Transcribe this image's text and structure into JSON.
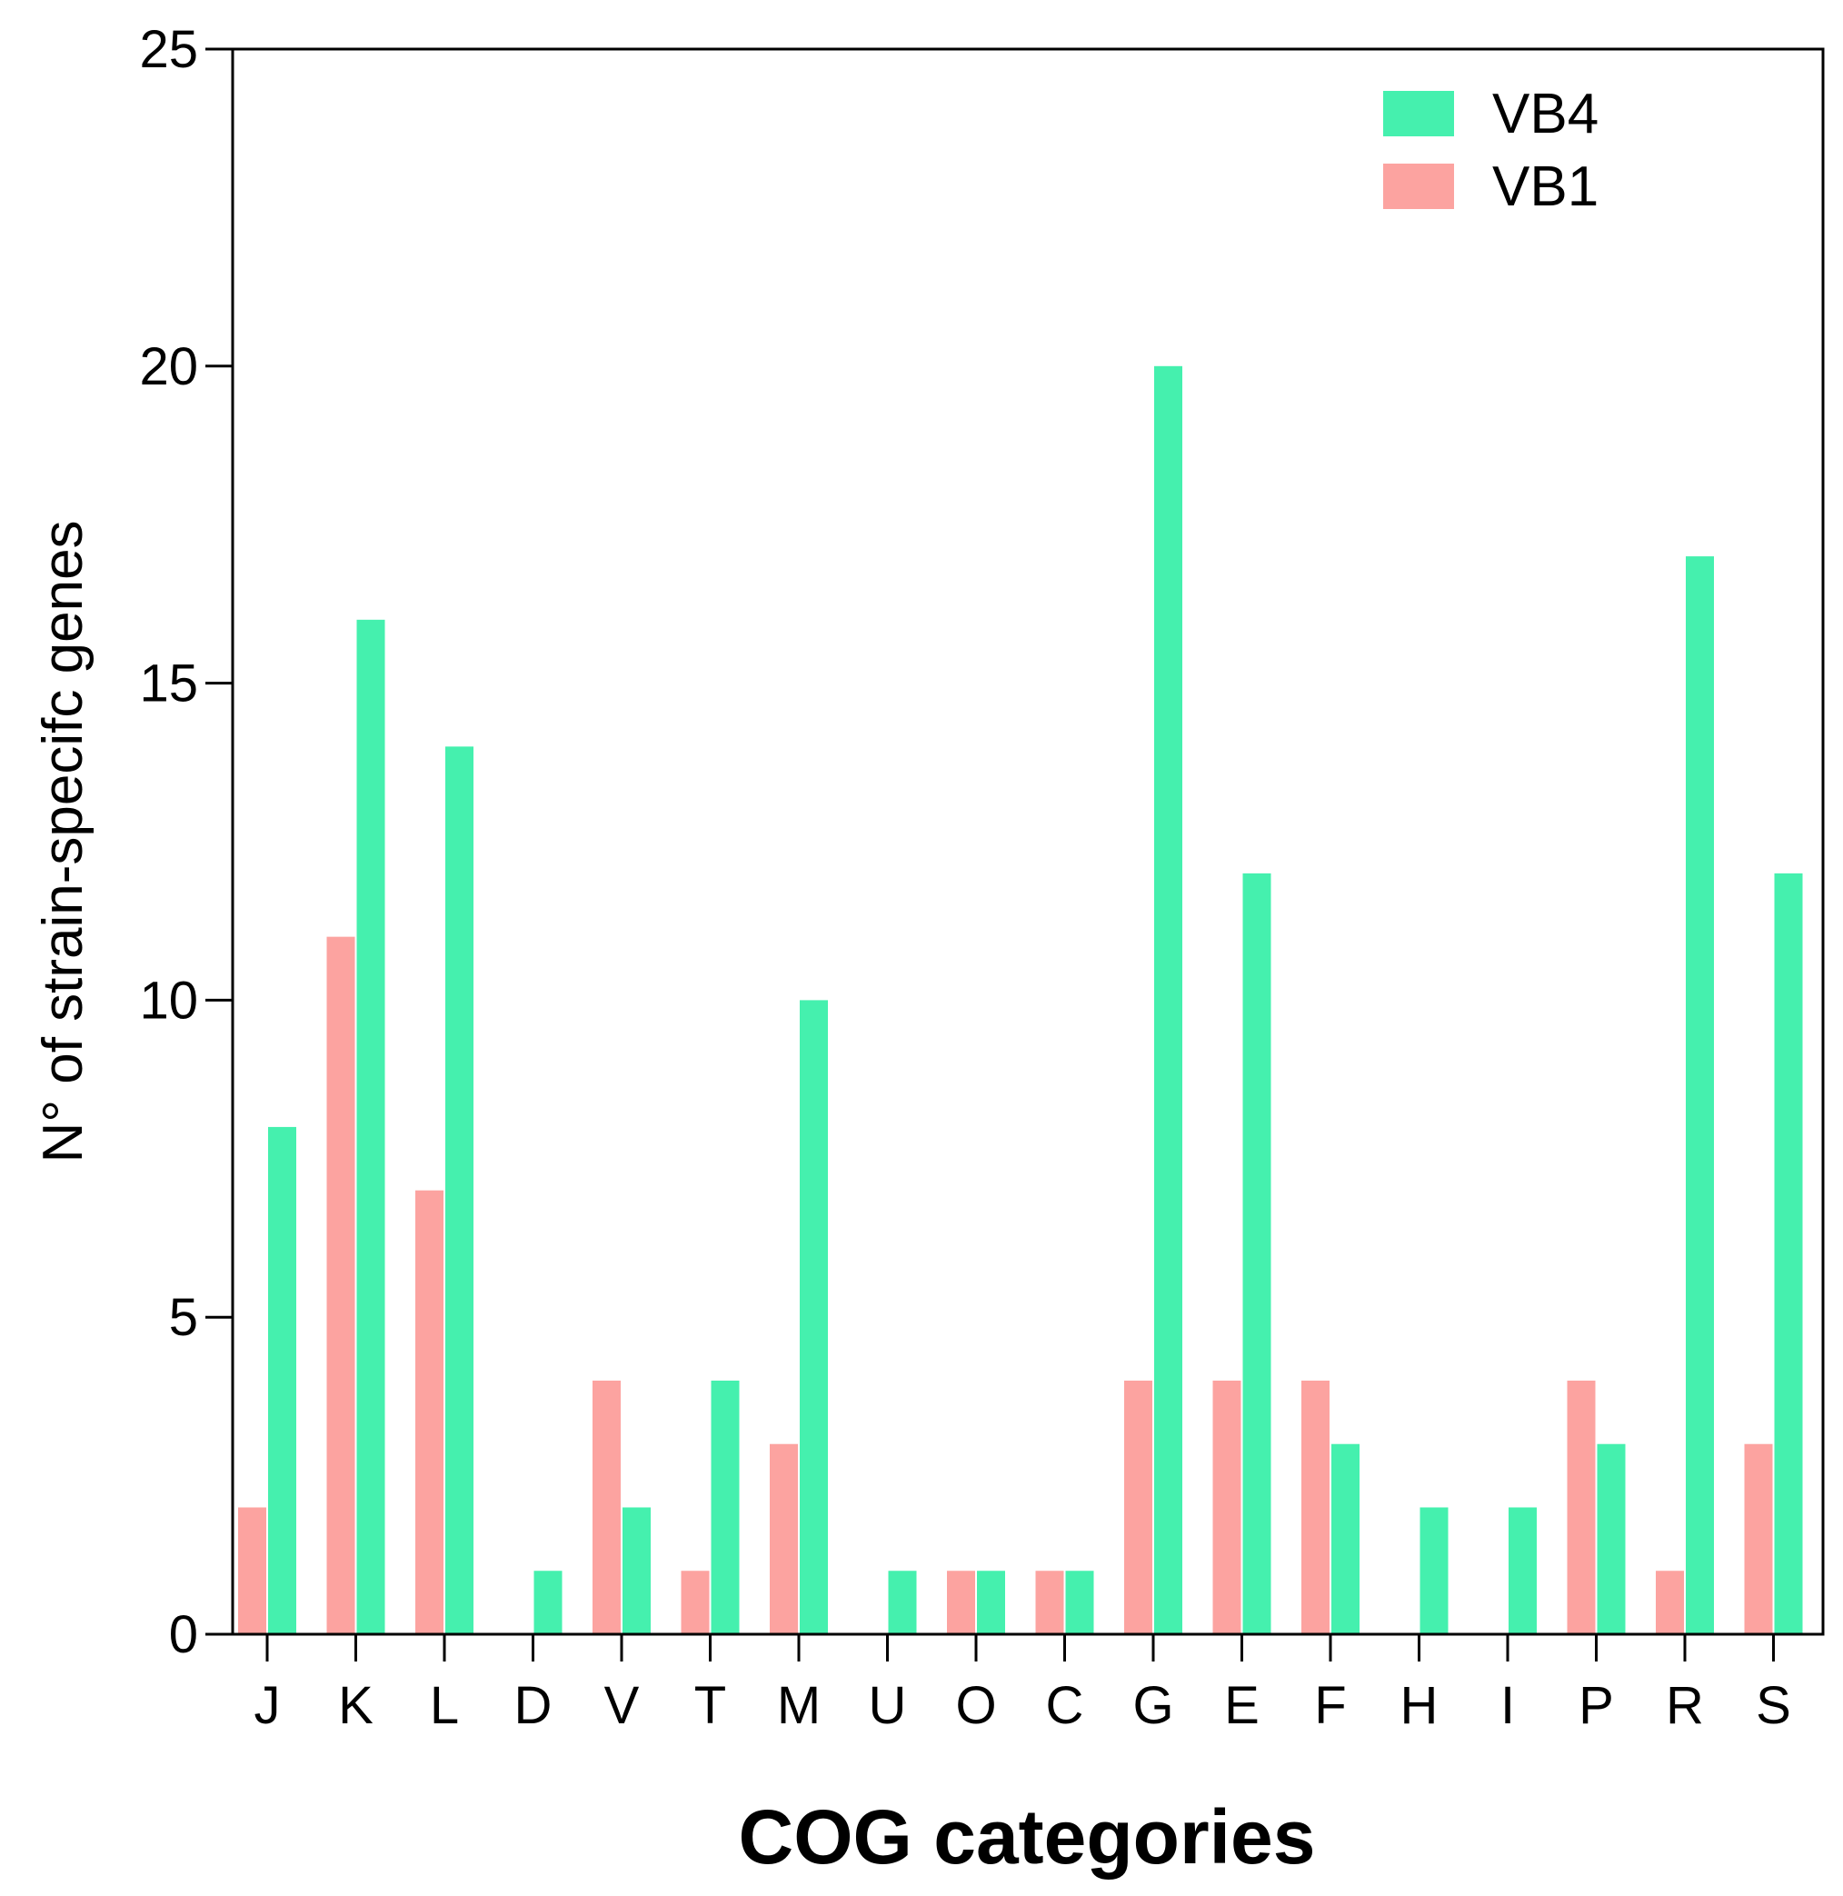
{
  "chart_data": {
    "type": "bar",
    "title": "",
    "xlabel": "COG categories",
    "ylabel": "N° of strain-specifc genes",
    "ylim": [
      0,
      25
    ],
    "yticks": [
      "0",
      "5",
      "10",
      "15",
      "20",
      "25"
    ],
    "grid": false,
    "legend_position": "top-right",
    "categories": [
      "J",
      "K",
      "L",
      "D",
      "V",
      "T",
      "M",
      "U",
      "O",
      "C",
      "G",
      "E",
      "F",
      "H",
      "I",
      "P",
      "R",
      "S"
    ],
    "series": [
      {
        "name": "VB1",
        "color": "#fca3a0",
        "values": [
          2,
          11,
          7,
          0,
          4,
          1,
          3,
          0,
          1,
          1,
          4,
          4,
          4,
          0,
          0,
          4,
          1,
          3
        ]
      },
      {
        "name": "VB4",
        "color": "#45f0ae",
        "values": [
          8,
          16,
          14,
          1,
          2,
          4,
          10,
          1,
          1,
          1,
          20,
          12,
          3,
          2,
          2,
          3,
          17,
          12
        ]
      }
    ],
    "legend": [
      {
        "name": "VB4",
        "color": "#45f0ae"
      },
      {
        "name": "VB1",
        "color": "#fca3a0"
      }
    ]
  }
}
